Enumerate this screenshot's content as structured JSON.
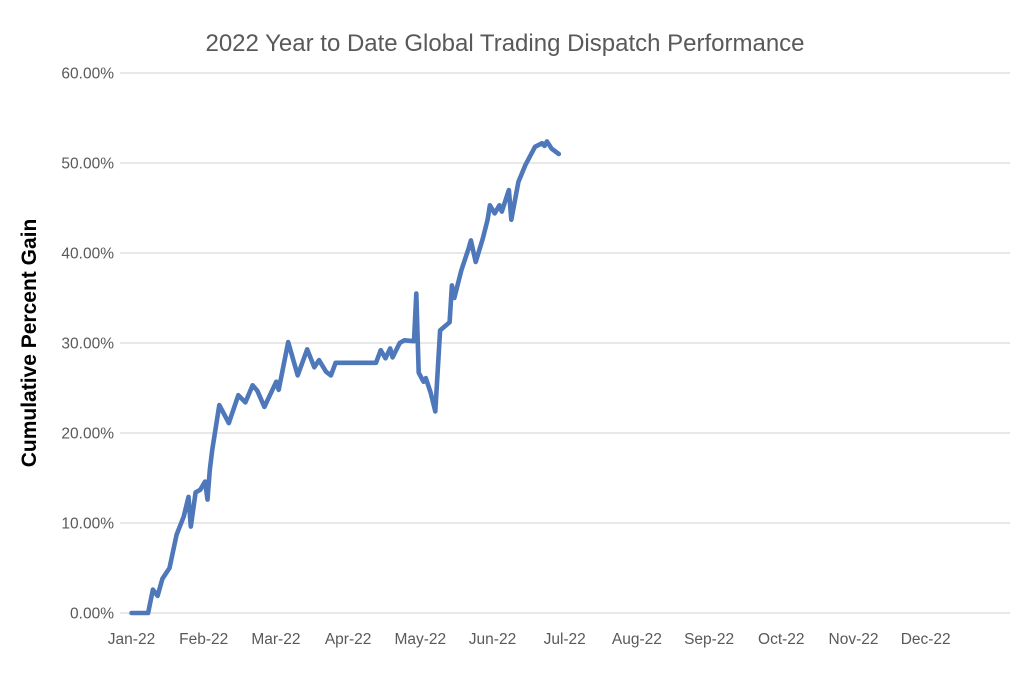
{
  "chart_data": {
    "type": "line",
    "title": "2022 Year to Date Global Trading Dispatch Performance",
    "xlabel": "",
    "ylabel": "Cumulative Percent Gain",
    "x_tick_labels": [
      "Jan-22",
      "Feb-22",
      "Mar-22",
      "Apr-22",
      "May-22",
      "Jun-22",
      "Jul-22",
      "Aug-22",
      "Sep-22",
      "Oct-22",
      "Nov-22",
      "Dec-22"
    ],
    "y_tick_labels": [
      "0.00%",
      "10.00%",
      "20.00%",
      "30.00%",
      "40.00%",
      "50.00%",
      "60.00%"
    ],
    "ylim": [
      0,
      60
    ],
    "y_tick_step": 10,
    "grid": "horizontal-only",
    "legend_position": "none",
    "colors": {
      "line": "#4e78ba",
      "gridline": "#d9d9d9",
      "tick_text": "#595959",
      "title_text": "#595959",
      "y_axis_title_text": "#000000",
      "background": "#ffffff"
    },
    "series": [
      {
        "name": "Cumulative Percent Gain",
        "points": [
          [
            "2022-01-01",
            0.0
          ],
          [
            "2022-01-08",
            0.0
          ],
          [
            "2022-01-10",
            2.6
          ],
          [
            "2022-01-12",
            1.9
          ],
          [
            "2022-01-14",
            3.8
          ],
          [
            "2022-01-17",
            5.0
          ],
          [
            "2022-01-20",
            8.7
          ],
          [
            "2022-01-23",
            10.7
          ],
          [
            "2022-01-25",
            12.9
          ],
          [
            "2022-01-26",
            9.6
          ],
          [
            "2022-01-28",
            13.4
          ],
          [
            "2022-01-30",
            13.7
          ],
          [
            "2022-02-01",
            14.6
          ],
          [
            "2022-02-02",
            12.6
          ],
          [
            "2022-02-03",
            15.9
          ],
          [
            "2022-02-04",
            18.1
          ],
          [
            "2022-02-07",
            23.1
          ],
          [
            "2022-02-11",
            21.1
          ],
          [
            "2022-02-15",
            24.2
          ],
          [
            "2022-02-18",
            23.4
          ],
          [
            "2022-02-21",
            25.3
          ],
          [
            "2022-02-23",
            24.7
          ],
          [
            "2022-02-26",
            22.9
          ],
          [
            "2022-03-03",
            25.7
          ],
          [
            "2022-03-04",
            24.8
          ],
          [
            "2022-03-08",
            30.1
          ],
          [
            "2022-03-12",
            26.4
          ],
          [
            "2022-03-16",
            29.3
          ],
          [
            "2022-03-19",
            27.3
          ],
          [
            "2022-03-21",
            28.1
          ],
          [
            "2022-03-24",
            26.8
          ],
          [
            "2022-03-26",
            26.4
          ],
          [
            "2022-03-28",
            27.8
          ],
          [
            "2022-04-14",
            27.8
          ],
          [
            "2022-04-16",
            29.2
          ],
          [
            "2022-04-18",
            28.3
          ],
          [
            "2022-04-20",
            29.4
          ],
          [
            "2022-04-21",
            28.4
          ],
          [
            "2022-04-24",
            30.0
          ],
          [
            "2022-04-26",
            30.3
          ],
          [
            "2022-04-30",
            30.2
          ],
          [
            "2022-05-01",
            35.5
          ],
          [
            "2022-05-02",
            26.7
          ],
          [
            "2022-05-04",
            25.7
          ],
          [
            "2022-05-05",
            26.1
          ],
          [
            "2022-05-07",
            24.5
          ],
          [
            "2022-05-09",
            22.4
          ],
          [
            "2022-05-11",
            31.4
          ],
          [
            "2022-05-15",
            32.3
          ],
          [
            "2022-05-16",
            36.4
          ],
          [
            "2022-05-17",
            35.0
          ],
          [
            "2022-05-20",
            38.1
          ],
          [
            "2022-05-23",
            40.5
          ],
          [
            "2022-05-24",
            41.4
          ],
          [
            "2022-05-26",
            39.0
          ],
          [
            "2022-05-29",
            41.6
          ],
          [
            "2022-05-31",
            43.7
          ],
          [
            "2022-06-01",
            45.3
          ],
          [
            "2022-06-03",
            44.4
          ],
          [
            "2022-06-05",
            45.3
          ],
          [
            "2022-06-06",
            44.6
          ],
          [
            "2022-06-09",
            47.0
          ],
          [
            "2022-06-10",
            43.7
          ],
          [
            "2022-06-13",
            47.9
          ],
          [
            "2022-06-16",
            49.8
          ],
          [
            "2022-06-20",
            51.8
          ],
          [
            "2022-06-23",
            52.2
          ],
          [
            "2022-06-24",
            51.9
          ],
          [
            "2022-06-25",
            52.4
          ],
          [
            "2022-06-27",
            51.6
          ],
          [
            "2022-06-30",
            51.0
          ]
        ]
      }
    ]
  }
}
